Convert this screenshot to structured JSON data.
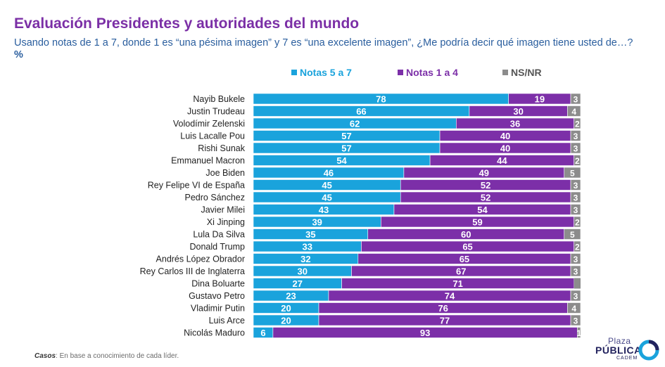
{
  "header": {
    "title": "Evaluación Presidentes y autoridades del mundo",
    "subtitle": "Usando notas de 1 a 7, donde 1 es “una pésima imagen” y 7 es “una excelente imagen”, ¿Me podría decir qué imagen tiene usted de…?",
    "subtitle_unit": "%"
  },
  "footer": {
    "label": "Casos",
    "text": ": En base a conocimiento de cada líder."
  },
  "logo": {
    "line1": "Plaza",
    "line2": "PÚBLICA",
    "line3": "CADEM"
  },
  "chart_data": {
    "type": "bar",
    "orientation": "horizontal",
    "stacked": true,
    "xlim": [
      0,
      100
    ],
    "categories": [
      "Nayib Bukele",
      "Justin Trudeau",
      "Volodímir Zelenski",
      "Luis Lacalle Pou",
      "Rishi Sunak",
      "Emmanuel Macron",
      "Joe Biden",
      "Rey Felipe VI de España",
      "Pedro Sánchez",
      "Javier Milei",
      "Xi Jinping",
      "Lula Da Silva",
      "Donald Trump",
      "Andrés López Obrador",
      "Rey Carlos III de Inglaterra",
      "Dina Boluarte",
      "Gustavo Petro",
      "Vladimir Putin",
      "Luis Arce",
      "Nicolás Maduro"
    ],
    "series": [
      {
        "name": "Notas 5 a 7",
        "color": "#1aa3dc",
        "label_color": "#ffffff",
        "values": [
          78,
          66,
          62,
          57,
          57,
          54,
          46,
          45,
          45,
          43,
          39,
          35,
          33,
          32,
          30,
          27,
          23,
          20,
          20,
          6
        ]
      },
      {
        "name": "Notas 1 a 4",
        "color": "#7c2fa8",
        "label_color": "#ffffff",
        "values": [
          19,
          30,
          36,
          40,
          40,
          44,
          49,
          52,
          52,
          54,
          59,
          60,
          65,
          65,
          67,
          71,
          74,
          76,
          77,
          93
        ]
      },
      {
        "name": "NS/NR",
        "color": "#8c8c8c",
        "label_color": "#ffffff",
        "values": [
          3,
          4,
          2,
          3,
          3,
          2,
          5,
          3,
          3,
          3,
          2,
          5,
          2,
          3,
          3,
          null,
          3,
          4,
          3,
          1
        ]
      }
    ],
    "legend_position": "top",
    "grid": false
  }
}
